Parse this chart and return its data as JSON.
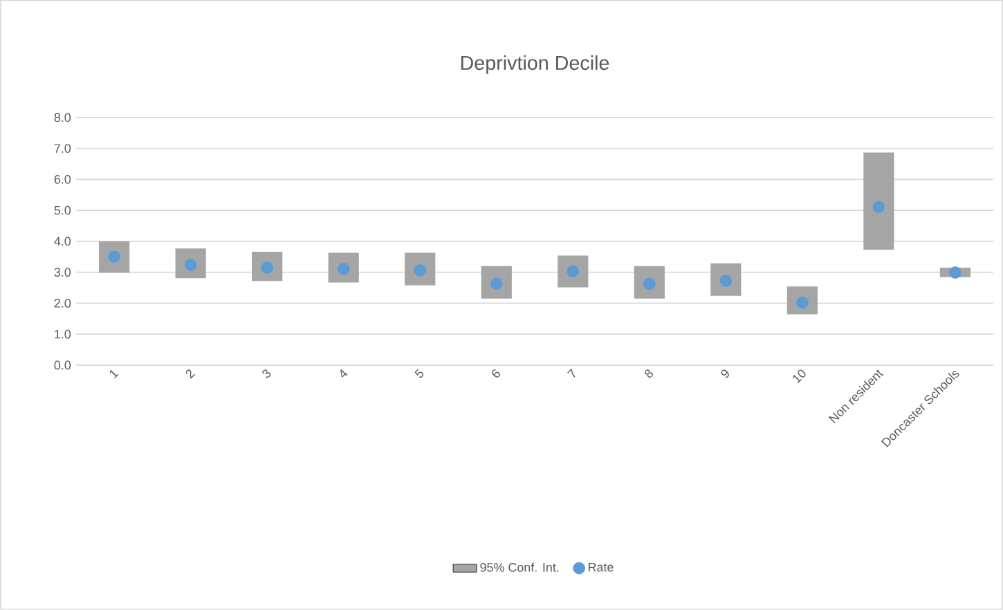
{
  "chart_data": {
    "type": "bar",
    "title": "Deprivtion Decile",
    "categories": [
      "1",
      "2",
      "3",
      "4",
      "5",
      "6",
      "7",
      "8",
      "9",
      "10",
      "Non resident",
      "Doncaster Schools"
    ],
    "series": [
      {
        "name": "95% Conf. Int.",
        "color": "#a5a5a5",
        "base": [
          2.98,
          2.81,
          2.72,
          2.67,
          2.58,
          2.15,
          2.51,
          2.15,
          2.24,
          1.64,
          3.73,
          2.84
        ],
        "values": [
          1.02,
          0.96,
          0.94,
          0.96,
          1.05,
          1.05,
          1.03,
          1.05,
          1.05,
          0.9,
          3.14,
          0.31
        ]
      },
      {
        "name": "Rate",
        "type": "scatter",
        "color": "#5b9bd5",
        "marker": "circle",
        "x": [
          "1",
          "2",
          "3",
          "4",
          "5",
          "6",
          "7",
          "8",
          "9",
          "10",
          "Non resident",
          "Doncaster Schools"
        ],
        "values": [
          3.5,
          3.24,
          3.15,
          3.11,
          3.06,
          2.63,
          3.03,
          2.63,
          2.72,
          2.02,
          5.11,
          2.99
        ]
      }
    ],
    "ylim": [
      0,
      8
    ],
    "yticks": [
      {
        "value": 0,
        "label": "0.0"
      },
      {
        "value": 1,
        "label": "1.0"
      },
      {
        "value": 2,
        "label": "2.0"
      },
      {
        "value": 3,
        "label": "3.0"
      },
      {
        "value": 4,
        "label": "4.0"
      },
      {
        "value": 5,
        "label": "5.0"
      },
      {
        "value": 6,
        "label": "6.0"
      },
      {
        "value": 7,
        "label": "7.0"
      },
      {
        "value": 8,
        "label": "8.0"
      }
    ],
    "grid": "y",
    "legend": "bottom"
  }
}
